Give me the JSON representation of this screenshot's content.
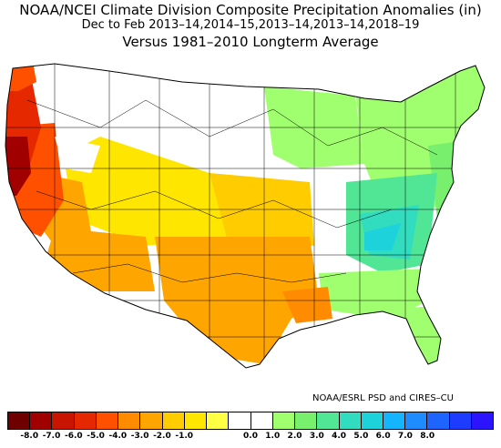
{
  "header": {
    "title": "NOAA/NCEI Climate Division Composite Precipitation Anomalies (in)",
    "subtitle": "Dec to Feb  2013–14,2014–15,2013–14,2013–14,2018–19",
    "baseline": "Versus 1981–2010 Longterm Average"
  },
  "credit": "NOAA/ESRL PSD and CIRES–CU",
  "legend": {
    "tick_labels": [
      "-8.0",
      "-7.0",
      "-6.0",
      "-5.0",
      "-4.0",
      "-3.0",
      "-2.0",
      "-1.0",
      "0.0",
      "1.0",
      "2.0",
      "3.0",
      "4.0",
      "5.0",
      "6.0",
      "7.0",
      "8.0"
    ],
    "colors": [
      "#6e0000",
      "#a00000",
      "#c81400",
      "#e62800",
      "#ff5000",
      "#ff8c00",
      "#ffa500",
      "#ffcc00",
      "#ffe600",
      "#ffff44",
      "#ffffff",
      "#ffffff",
      "#a0ff6e",
      "#78f06e",
      "#50e696",
      "#32dcbe",
      "#1ed2dc",
      "#14b4ff",
      "#1e8cff",
      "#1e64ff",
      "#1e3cff",
      "#2d14ff"
    ]
  },
  "map_regions": [
    {
      "region": "Northern California coast",
      "anomaly": "-8.0 to -7.0",
      "color": "#a00000"
    },
    {
      "region": "Oregon / northern California",
      "anomaly": "-6.0 to -5.0",
      "color": "#e62800"
    },
    {
      "region": "Central California",
      "anomaly": "-5.0 to -4.0",
      "color": "#ff5000"
    },
    {
      "region": "Western Washington",
      "anomaly": "-5.0 to -4.0",
      "color": "#ff5000"
    },
    {
      "region": "Desert Southwest",
      "anomaly": "-2.0 to -1.0",
      "color": "#ffa500"
    },
    {
      "region": "Texas / Southern Plains",
      "anomaly": "-2.0 to -1.0",
      "color": "#ffa500"
    },
    {
      "region": "Louisiana",
      "anomaly": "-4.0 to -3.0",
      "color": "#ff8c00"
    },
    {
      "region": "Great Basin / Central Plains",
      "anomaly": "-1.0 to 0.0",
      "color": "#ffe600"
    },
    {
      "region": "Northern Plains / Midwest",
      "anomaly": "0.0 to 1.0",
      "color": "#ffffff"
    },
    {
      "region": "Northeast / Great Lakes",
      "anomaly": "1.0 to 2.0",
      "color": "#a0ff6e"
    },
    {
      "region": "Ohio Valley / Appalachians",
      "anomaly": "2.0 to 4.0",
      "color": "#50e696"
    },
    {
      "region": "Tennessee Valley",
      "anomaly": "4.0 to 5.0",
      "color": "#1ed2dc"
    },
    {
      "region": "Florida",
      "anomaly": "1.0 to 2.0",
      "color": "#a0ff6e"
    }
  ]
}
